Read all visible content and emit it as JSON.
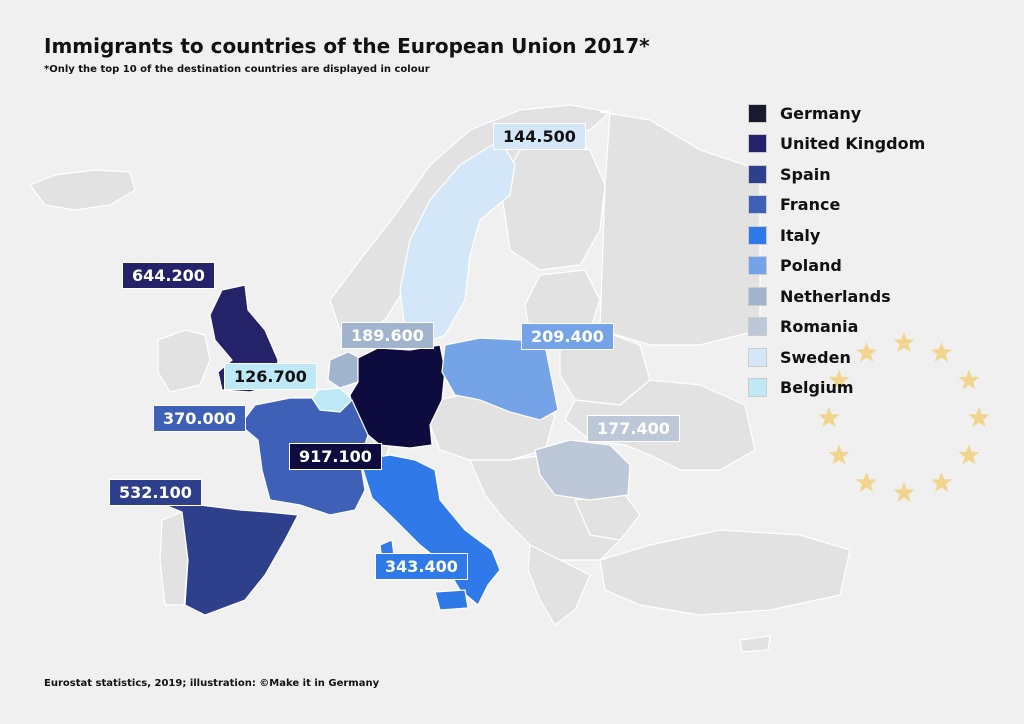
{
  "title": "Immigrants to countries of the European Union 2017*",
  "subtitle": "*Only the top 10 of the destination countries are displayed in colour",
  "source": "Eurostat statistics, 2019; illustration: ©Make it in Germany",
  "colors": {
    "background": "#f0f0f0",
    "other_country": "#e2e2e2",
    "border": "#ffffff",
    "eu_star": "#f1d48e"
  },
  "chart_data": {
    "type": "choropleth",
    "unit": "immigrants",
    "legend_position": "top-right",
    "countries": [
      {
        "name": "Germany",
        "value_label": "917.100",
        "value": 917100,
        "color": "#0e0b3f"
      },
      {
        "name": "United Kingdom",
        "value_label": "644.200",
        "value": 644200,
        "color": "#24236a"
      },
      {
        "name": "Spain",
        "value_label": "532.100",
        "value": 532100,
        "color": "#2e408c"
      },
      {
        "name": "France",
        "value_label": "370.000",
        "value": 370000,
        "color": "#3e60b6"
      },
      {
        "name": "Italy",
        "value_label": "343.400",
        "value": 343400,
        "color": "#2f7ae8"
      },
      {
        "name": "Poland",
        "value_label": "209.400",
        "value": 209400,
        "color": "#74a3e8"
      },
      {
        "name": "Netherlands",
        "value_label": "189.600",
        "value": 189600,
        "color": "#a1b4cd"
      },
      {
        "name": "Romania",
        "value_label": "177.400",
        "value": 177400,
        "color": "#bcc8d8"
      },
      {
        "name": "Sweden",
        "value_label": "144.500",
        "value": 144500,
        "color": "#d4e7f9"
      },
      {
        "name": "Belgium",
        "value_label": "126.700",
        "value": 126700,
        "color": "#bfe8f7"
      }
    ]
  }
}
